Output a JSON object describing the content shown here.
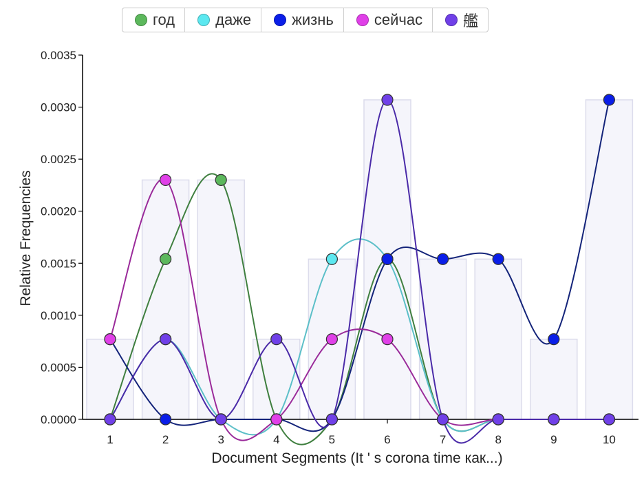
{
  "chart_data": {
    "type": "line",
    "xlabel": "Document Segments (It ' s corona time как...)",
    "ylabel": "Relative Frequencies",
    "x": [
      1,
      2,
      3,
      4,
      5,
      6,
      7,
      8,
      9,
      10
    ],
    "ylim": [
      0,
      0.0035
    ],
    "yticks": [
      "0.0000",
      "0.0005",
      "0.0010",
      "0.0015",
      "0.0020",
      "0.0025",
      "0.0030",
      "0.0035"
    ],
    "xticks": [
      "1",
      "2",
      "3",
      "4",
      "5",
      "6",
      "7",
      "8",
      "9",
      "10"
    ],
    "bars": [
      0.00077,
      0.0023,
      0.0023,
      0.00077,
      0.00154,
      0.00307,
      0.00154,
      0.00154,
      0.00077,
      0.00307
    ],
    "series": [
      {
        "name": "год",
        "color": "#5cb85c",
        "line_color": "#3f7f3f",
        "values": [
          0,
          0.00154,
          0.0023,
          0,
          0,
          0.00154,
          0,
          0,
          0,
          0
        ]
      },
      {
        "name": "даже",
        "color": "#5ce8f0",
        "line_color": "#5bbfc8",
        "values": [
          0,
          0.00077,
          0,
          0,
          0.00154,
          0.00154,
          0,
          0,
          0,
          0
        ]
      },
      {
        "name": "жизнь",
        "color": "#0a1ee8",
        "line_color": "#14247a",
        "values": [
          0.00077,
          0,
          0,
          0,
          0,
          0.00154,
          0.00154,
          0.00154,
          0.00077,
          0.00307
        ]
      },
      {
        "name": "сейчас",
        "color": "#e040e8",
        "line_color": "#9a2a9a",
        "values": [
          0.00077,
          0.0023,
          0,
          0,
          0.00077,
          0.00077,
          0,
          0,
          0,
          0
        ]
      },
      {
        "name": "艦",
        "color": "#7040e8",
        "line_color": "#4a2aa8",
        "values": [
          0,
          0.00077,
          0,
          0.00077,
          0,
          0.00307,
          0,
          0,
          0,
          0
        ]
      }
    ],
    "legend_position": "top-center",
    "grid": false
  }
}
